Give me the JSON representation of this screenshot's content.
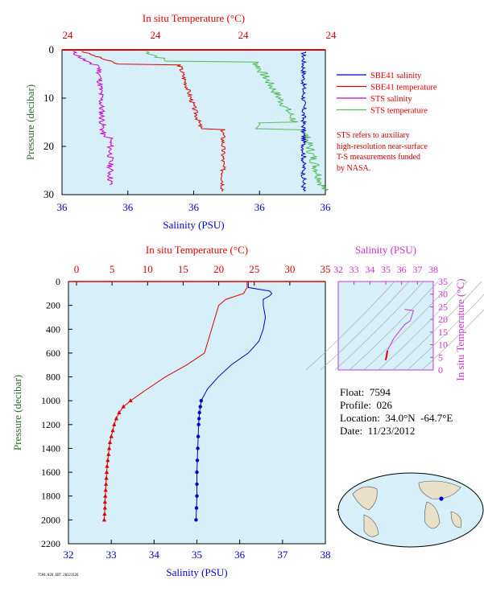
{
  "colors": {
    "plot_bg": "#d7eff8",
    "salinity": "#0000cc",
    "temperature": "#dd0000",
    "sts_salinity": "#cc00cc",
    "sts_temperature": "#55bb55",
    "sts_salinity_bg": "#d070d0",
    "pink": "#cc33cc",
    "axis_green": "#336633"
  },
  "top_panel": {
    "title_top": "In situ Temperature (°C)",
    "temp_ticks": [
      "24",
      "24",
      "24",
      "24"
    ],
    "sal_ticks": [
      "36",
      "36",
      "36",
      "36",
      "36"
    ],
    "xlabel": "Salinity (PSU)",
    "ylabel": "Pressure (decibar)",
    "pressure_ticks": [
      "0",
      "10",
      "20",
      "30"
    ],
    "legend": [
      {
        "label": "SBE41 salinity",
        "color": "#0000cc"
      },
      {
        "label": "SBE41 temperature",
        "color": "#dd0000"
      },
      {
        "label": "STS salinity",
        "color": "#cc00cc"
      },
      {
        "label": "STS temperature",
        "color": "#55bb55"
      }
    ],
    "note_lines": [
      "STS refers to auxiliary",
      "high-resolution near-surface",
      "T-S measurements funded",
      "by NASA."
    ]
  },
  "main_panel": {
    "title_top": "In situ Temperature (°C)",
    "temp_ticks": [
      "0",
      "5",
      "10",
      "15",
      "20",
      "25",
      "30",
      "35"
    ],
    "sal_ticks": [
      "32",
      "33",
      "34",
      "35",
      "36",
      "37",
      "38"
    ],
    "pressure_ticks": [
      "0",
      "200",
      "400",
      "600",
      "800",
      "1000",
      "1200",
      "1400",
      "1600",
      "1800",
      "2000",
      "2200"
    ],
    "xlabel": "Salinity (PSU)",
    "ylabel": "Pressure (decibar)"
  },
  "ts_panel": {
    "title_top": "Salinity (PSU)",
    "sal_ticks": [
      "32",
      "33",
      "34",
      "35",
      "36",
      "37",
      "38"
    ],
    "temp_ticks": [
      "0",
      "5",
      "10",
      "15",
      "20",
      "25",
      "30",
      "35"
    ],
    "ylabel": "In situ Temperature (°C)"
  },
  "float_info": {
    "float": "Float:  7594",
    "profile": "Profile:  026",
    "location": "Location:  34.0°N  -64.7°E",
    "date": "Date:  11/23/2012"
  },
  "footer_text": "7594.026.EDT.20121126",
  "chart_data": [
    {
      "type": "line",
      "name": "top_panel_near_surface",
      "ylabel": "Pressure (decibar)",
      "ylim": [
        30,
        0
      ],
      "series": [
        {
          "name": "SBE41 salinity",
          "profile": [
            [
              0,
              36.2
            ],
            [
              5,
              36.2
            ],
            [
              10,
              36.2
            ],
            [
              20,
              36.2
            ],
            [
              30,
              36.2
            ]
          ]
        },
        {
          "name": "SBE41 temperature",
          "profile": [
            [
              0,
              24
            ],
            [
              10,
              24
            ],
            [
              20,
              24
            ],
            [
              30,
              24
            ]
          ]
        },
        {
          "name": "STS salinity",
          "profile": [
            [
              0,
              36
            ],
            [
              3,
              36
            ],
            [
              10,
              36
            ],
            [
              20,
              36
            ],
            [
              28,
              36
            ]
          ]
        },
        {
          "name": "STS temperature",
          "profile": [
            [
              0,
              24
            ],
            [
              10,
              24
            ],
            [
              20,
              24
            ],
            [
              28,
              24
            ]
          ]
        }
      ]
    },
    {
      "type": "line",
      "name": "full_profile",
      "ylabel": "Pressure (decibar)",
      "ylim": [
        2200,
        0
      ],
      "series": [
        {
          "name": "Temperature",
          "x_axis": "In situ Temperature (°C)",
          "xlim": [
            0,
            35
          ],
          "points": [
            [
              0,
              24.0
            ],
            [
              50,
              24.0
            ],
            [
              100,
              23.5
            ],
            [
              150,
              21.0
            ],
            [
              200,
              20.0
            ],
            [
              300,
              19.5
            ],
            [
              400,
              19.0
            ],
            [
              500,
              18.5
            ],
            [
              600,
              18.0
            ],
            [
              700,
              15.5
            ],
            [
              800,
              12.5
            ],
            [
              900,
              10.0
            ],
            [
              1000,
              7.6
            ],
            [
              1050,
              6.6
            ],
            [
              1100,
              6.0
            ],
            [
              1150,
              5.6
            ],
            [
              1200,
              5.3
            ],
            [
              1250,
              5.1
            ],
            [
              1300,
              4.9
            ],
            [
              1350,
              4.7
            ],
            [
              1400,
              4.6
            ],
            [
              1450,
              4.5
            ],
            [
              1500,
              4.4
            ],
            [
              1550,
              4.3
            ],
            [
              1600,
              4.25
            ],
            [
              1650,
              4.2
            ],
            [
              1700,
              4.15
            ],
            [
              1750,
              4.1
            ],
            [
              1800,
              4.05
            ],
            [
              1850,
              4.0
            ],
            [
              1900,
              4.0
            ],
            [
              1950,
              3.95
            ],
            [
              2000,
              3.9
            ]
          ]
        },
        {
          "name": "Salinity",
          "x_axis": "Salinity (PSU)",
          "xlim": [
            32,
            38
          ],
          "points": [
            [
              0,
              36.2
            ],
            [
              50,
              36.2
            ],
            [
              80,
              36.7
            ],
            [
              100,
              36.75
            ],
            [
              120,
              36.7
            ],
            [
              150,
              36.55
            ],
            [
              200,
              36.55
            ],
            [
              300,
              36.6
            ],
            [
              400,
              36.55
            ],
            [
              500,
              36.45
            ],
            [
              600,
              36.2
            ],
            [
              700,
              35.8
            ],
            [
              800,
              35.5
            ],
            [
              900,
              35.25
            ],
            [
              1000,
              35.1
            ],
            [
              1050,
              35.08
            ],
            [
              1100,
              35.06
            ],
            [
              1150,
              35.05
            ],
            [
              1200,
              35.04
            ],
            [
              1300,
              35.03
            ],
            [
              1400,
              35.02
            ],
            [
              1500,
              35.01
            ],
            [
              1600,
              35.0
            ],
            [
              1700,
              35.0
            ],
            [
              1800,
              35.0
            ],
            [
              1900,
              34.99
            ],
            [
              2000,
              34.98
            ]
          ]
        }
      ]
    },
    {
      "type": "line",
      "name": "ts_diagram",
      "xlabel": "Salinity (PSU)",
      "ylabel": "In situ Temperature (°C)",
      "xlim": [
        32,
        38
      ],
      "ylim": [
        0,
        35
      ],
      "points": [
        [
          34.98,
          3.9
        ],
        [
          35.0,
          4.2
        ],
        [
          35.05,
          5.3
        ],
        [
          35.1,
          7.6
        ],
        [
          35.5,
          12.5
        ],
        [
          36.2,
          18.0
        ],
        [
          36.55,
          19.5
        ],
        [
          36.75,
          23.5
        ],
        [
          36.2,
          24.0
        ]
      ]
    }
  ]
}
